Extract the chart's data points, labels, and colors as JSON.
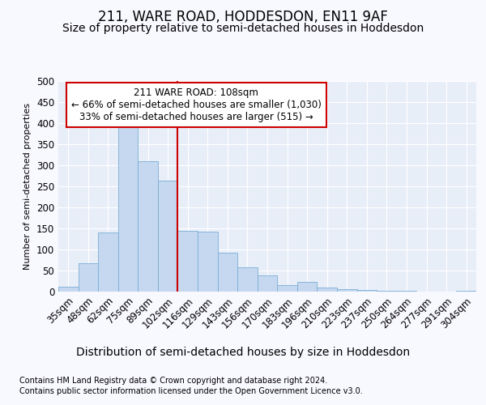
{
  "title": "211, WARE ROAD, HODDESDON, EN11 9AF",
  "subtitle": "Size of property relative to semi-detached houses in Hoddesdon",
  "xlabel": "Distribution of semi-detached houses by size in Hoddesdon",
  "ylabel": "Number of semi-detached properties",
  "footer1": "Contains HM Land Registry data © Crown copyright and database right 2024.",
  "footer2": "Contains public sector information licensed under the Open Government Licence v3.0.",
  "bin_labels": [
    "35sqm",
    "48sqm",
    "62sqm",
    "75sqm",
    "89sqm",
    "102sqm",
    "116sqm",
    "129sqm",
    "143sqm",
    "156sqm",
    "170sqm",
    "183sqm",
    "196sqm",
    "210sqm",
    "223sqm",
    "237sqm",
    "250sqm",
    "264sqm",
    "277sqm",
    "291sqm",
    "304sqm"
  ],
  "bar_heights": [
    12,
    67,
    140,
    402,
    310,
    263,
    145,
    142,
    93,
    58,
    38,
    15,
    23,
    9,
    6,
    3,
    2,
    1,
    0,
    0,
    1
  ],
  "bar_color": "#c5d8f0",
  "bar_edge_color": "#7aaed6",
  "vline_x": 5.5,
  "vline_color": "#cc0000",
  "annotation_text_line1": "211 WARE ROAD: 108sqm",
  "annotation_text_line2": "← 66% of semi-detached houses are smaller (1,030)",
  "annotation_text_line3": "33% of semi-detached houses are larger (515) →",
  "annotation_box_color": "#ffffff",
  "annotation_box_edge": "#cc0000",
  "ylim": [
    0,
    500
  ],
  "yticks": [
    0,
    50,
    100,
    150,
    200,
    250,
    300,
    350,
    400,
    450,
    500
  ],
  "background_color": "#f8f8ff",
  "plot_bg_color": "#e8eef8",
  "grid_color": "#ffffff",
  "title_fontsize": 12,
  "subtitle_fontsize": 10,
  "xlabel_fontsize": 10,
  "ylabel_fontsize": 8,
  "tick_fontsize": 8.5,
  "annotation_fontsize": 8.5,
  "footer_fontsize": 7
}
